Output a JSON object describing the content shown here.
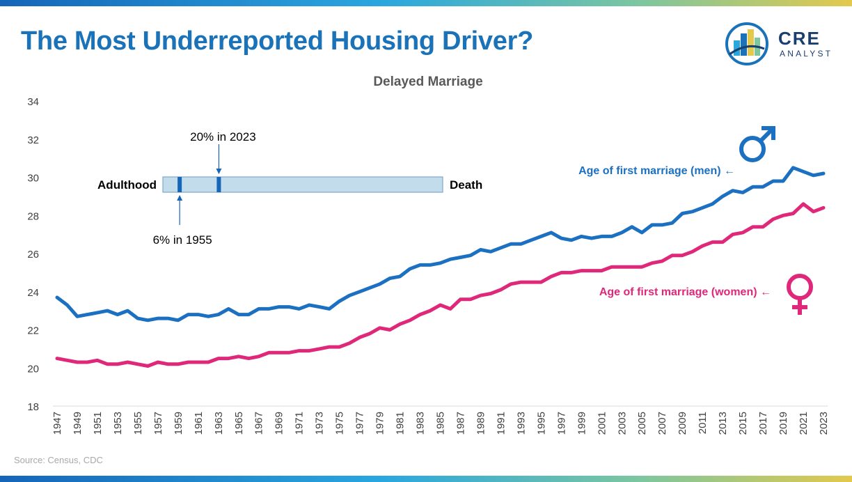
{
  "header": {
    "title": "The Most Underreported Housing Driver?"
  },
  "logo": {
    "word": "CRE",
    "sub": "ANALYST"
  },
  "footer": {
    "source": "Source: Census, CDC"
  },
  "colors": {
    "men": "#1c70c1",
    "women": "#e0287a",
    "title": "#1a72b8"
  },
  "chart_data": {
    "type": "line",
    "title": "Delayed Marriage",
    "ylim": [
      18,
      34
    ],
    "yticks": [
      18,
      20,
      22,
      24,
      26,
      28,
      30,
      32,
      34
    ],
    "x": [
      1947,
      1948,
      1949,
      1950,
      1951,
      1952,
      1953,
      1954,
      1955,
      1956,
      1957,
      1958,
      1959,
      1960,
      1961,
      1962,
      1963,
      1964,
      1965,
      1966,
      1967,
      1968,
      1969,
      1970,
      1971,
      1972,
      1973,
      1974,
      1975,
      1976,
      1977,
      1978,
      1979,
      1980,
      1981,
      1982,
      1983,
      1984,
      1985,
      1986,
      1987,
      1988,
      1989,
      1990,
      1991,
      1992,
      1993,
      1994,
      1995,
      1996,
      1997,
      1998,
      1999,
      2000,
      2001,
      2002,
      2003,
      2004,
      2005,
      2006,
      2007,
      2008,
      2009,
      2010,
      2011,
      2012,
      2013,
      2014,
      2015,
      2016,
      2017,
      2018,
      2019,
      2020,
      2021,
      2022,
      2023
    ],
    "xtick_labels": [
      "1947",
      "1949",
      "1951",
      "1953",
      "1955",
      "1957",
      "1959",
      "1961",
      "1963",
      "1965",
      "1967",
      "1969",
      "1971",
      "1973",
      "1975",
      "1977",
      "1979",
      "1981",
      "1983",
      "1985",
      "1987",
      "1989",
      "1991",
      "1993",
      "1995",
      "1997",
      "1999",
      "2001",
      "2003",
      "2005",
      "2007",
      "2009",
      "2011",
      "2013",
      "2015",
      "2017",
      "2019",
      "2021",
      "2023"
    ],
    "series": [
      {
        "name": "Age of first marriage (men) ←",
        "values": [
          23.7,
          23.3,
          22.7,
          22.8,
          22.9,
          23.0,
          22.8,
          23.0,
          22.6,
          22.5,
          22.6,
          22.6,
          22.5,
          22.8,
          22.8,
          22.7,
          22.8,
          23.1,
          22.8,
          22.8,
          23.1,
          23.1,
          23.2,
          23.2,
          23.1,
          23.3,
          23.2,
          23.1,
          23.5,
          23.8,
          24.0,
          24.2,
          24.4,
          24.7,
          24.8,
          25.2,
          25.4,
          25.4,
          25.5,
          25.7,
          25.8,
          25.9,
          26.2,
          26.1,
          26.3,
          26.5,
          26.5,
          26.7,
          26.9,
          27.1,
          26.8,
          26.7,
          26.9,
          26.8,
          26.9,
          26.9,
          27.1,
          27.4,
          27.1,
          27.5,
          27.5,
          27.6,
          28.1,
          28.2,
          28.4,
          28.6,
          29.0,
          29.3,
          29.2,
          29.5,
          29.5,
          29.8,
          29.8,
          30.5,
          30.3,
          30.1,
          30.2
        ]
      },
      {
        "name": "Age of first marriage (women) ←",
        "values": [
          20.5,
          20.4,
          20.3,
          20.3,
          20.4,
          20.2,
          20.2,
          20.3,
          20.2,
          20.1,
          20.3,
          20.2,
          20.2,
          20.3,
          20.3,
          20.3,
          20.5,
          20.5,
          20.6,
          20.5,
          20.6,
          20.8,
          20.8,
          20.8,
          20.9,
          20.9,
          21.0,
          21.1,
          21.1,
          21.3,
          21.6,
          21.8,
          22.1,
          22.0,
          22.3,
          22.5,
          22.8,
          23.0,
          23.3,
          23.1,
          23.6,
          23.6,
          23.8,
          23.9,
          24.1,
          24.4,
          24.5,
          24.5,
          24.5,
          24.8,
          25.0,
          25.0,
          25.1,
          25.1,
          25.1,
          25.3,
          25.3,
          25.3,
          25.3,
          25.5,
          25.6,
          25.9,
          25.9,
          26.1,
          26.4,
          26.6,
          26.6,
          27.0,
          27.1,
          27.4,
          27.4,
          27.8,
          28.0,
          28.1,
          28.6,
          28.2,
          28.4
        ]
      }
    ],
    "lifeline": {
      "left_label": "Adulthood",
      "right_label": "Death",
      "marker_1955_pct": 6,
      "marker_1955_label": "6% in 1955",
      "marker_2023_pct": 20,
      "marker_2023_label": "20% in 2023"
    }
  }
}
